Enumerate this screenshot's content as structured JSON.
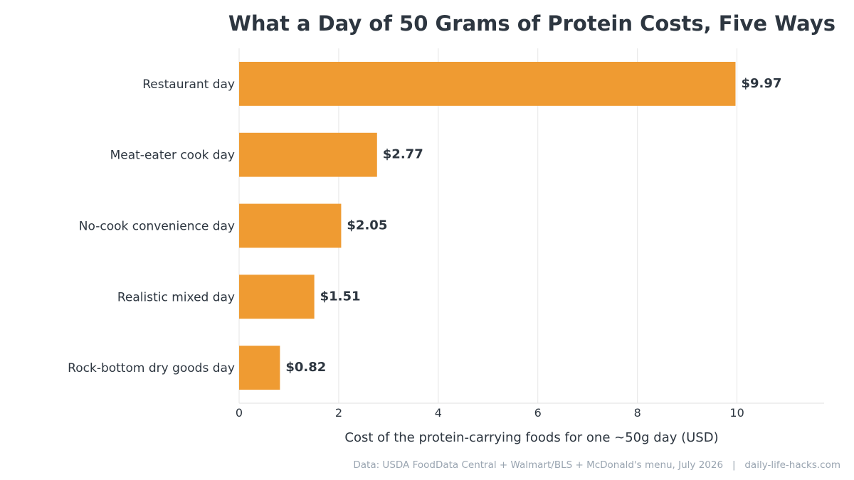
{
  "chart_data": {
    "type": "bar",
    "orientation": "horizontal",
    "title": "What a Day of 50 Grams of Protein Costs, Five Ways",
    "xlabel": "Cost of the protein-carrying foods for one ~50g day (USD)",
    "ylabel": "",
    "categories": [
      "Restaurant day",
      "Meat-eater cook day",
      "No-cook convenience day",
      "Realistic mixed day",
      "Rock-bottom dry goods day"
    ],
    "values": [
      9.97,
      2.77,
      2.05,
      1.51,
      0.82
    ],
    "value_labels": [
      "$9.97",
      "$2.77",
      "$2.05",
      "$1.51",
      "$0.82"
    ],
    "xlim": [
      0,
      11.75
    ],
    "xticks": [
      0,
      2,
      4,
      6,
      8,
      10
    ],
    "grid": "vertical",
    "bar_color": "#ef9b32"
  },
  "footer": {
    "source": "Data: USDA FoodData Central + Walmart/BLS + McDonald's menu, July 2026   |   daily-life-hacks.com"
  }
}
